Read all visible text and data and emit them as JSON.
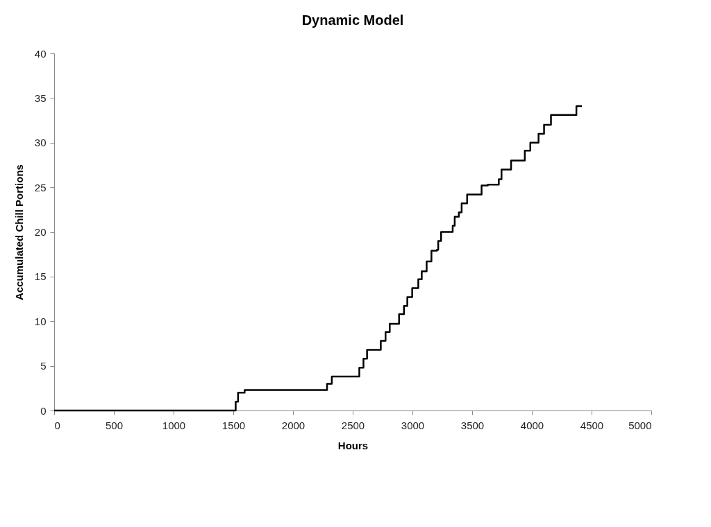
{
  "chart_data": {
    "type": "step",
    "title": "Dynamic Model",
    "xlabel": "Hours",
    "ylabel": "Accumulated Chill Portions",
    "x": [
      0,
      1520,
      1540,
      1595,
      2285,
      2325,
      2555,
      2590,
      2620,
      2735,
      2775,
      2810,
      2888,
      2929,
      2957,
      2998,
      3049,
      3078,
      3119,
      3159,
      3205,
      3216,
      3240,
      3337,
      3354,
      3389,
      3412,
      3458,
      3579,
      3631,
      3723,
      3746,
      3826,
      3941,
      3987,
      4056,
      4102,
      4160,
      4373,
      4419
    ],
    "series": [
      {
        "color": "#000000",
        "values": [
          0,
          1,
          2,
          2.3,
          3,
          3.8,
          4.8,
          5.8,
          6.8,
          7.8,
          8.8,
          9.7,
          10.8,
          11.7,
          12.7,
          13.7,
          14.7,
          15.6,
          16.7,
          17.9,
          18,
          19,
          20,
          20.7,
          21.7,
          22.2,
          23.2,
          24.2,
          25.2,
          25.3,
          25.9,
          27,
          28,
          29.1,
          30,
          31,
          32,
          33.1,
          34.1,
          34.1
        ]
      }
    ],
    "xlim": [
      0,
      5000
    ],
    "xticks": [
      0,
      500,
      1000,
      1500,
      2000,
      2500,
      3000,
      3500,
      4000,
      4500,
      5000
    ],
    "ylim": [
      0,
      40
    ],
    "yticks": [
      0,
      5,
      10,
      15,
      20,
      25,
      30,
      35,
      40
    ],
    "grid": false
  }
}
